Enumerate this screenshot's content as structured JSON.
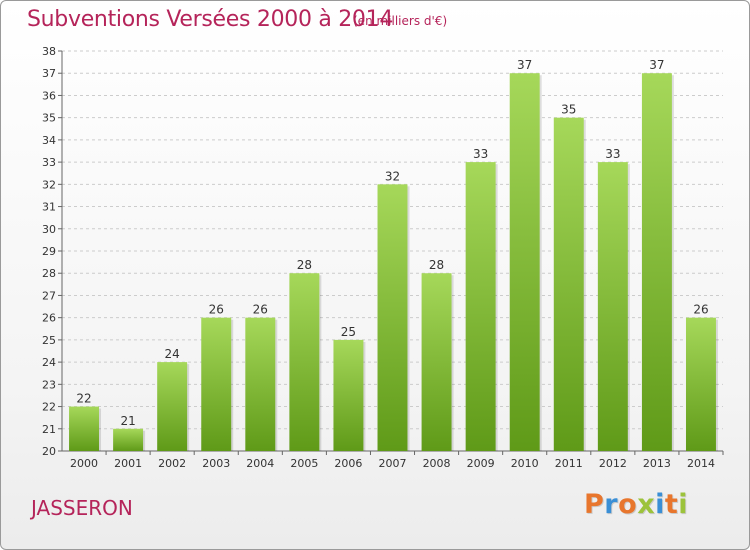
{
  "header": {
    "title": "Subventions Versées 2000 à 2014",
    "subtitle": "(en milliers d'€)"
  },
  "footer": {
    "commune": "JASSERON",
    "logo_text": "Proxiti",
    "logo_colors": [
      "#e8762d",
      "#3a8fd6",
      "#e8762d",
      "#9cc33b",
      "#3a8fd6",
      "#e8762d",
      "#9cc33b"
    ]
  },
  "colors": {
    "bar_light": "#a6d85a",
    "bar_dark": "#5f9a18",
    "accent": "#b5245a",
    "grid": "#cccccc"
  },
  "chart_data": {
    "type": "bar",
    "title": "Subventions Versées 2000 à 2014",
    "subtitle": "(en milliers d'€)",
    "categories": [
      "2000",
      "2001",
      "2002",
      "2003",
      "2004",
      "2005",
      "2006",
      "2007",
      "2008",
      "2009",
      "2010",
      "2011",
      "2012",
      "2013",
      "2014"
    ],
    "values": [
      22,
      21,
      24,
      26,
      26,
      28,
      25,
      32,
      28,
      33,
      37,
      35,
      33,
      37,
      26
    ],
    "ylim": [
      20,
      38
    ],
    "ytick_step": 1,
    "grid": true,
    "data_labels": true,
    "legend": "none"
  }
}
